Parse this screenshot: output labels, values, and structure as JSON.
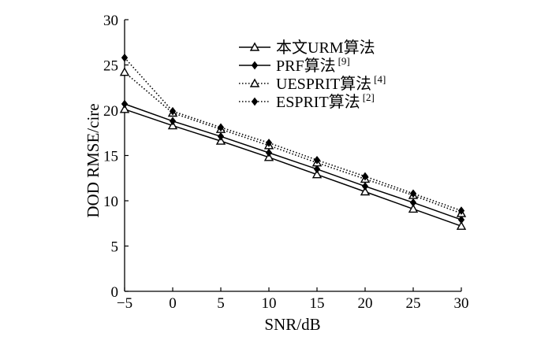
{
  "chart_data": {
    "type": "line",
    "title": "",
    "xlabel": "SNR/dB",
    "ylabel": "DOD RMSE/cire",
    "xlim": [
      -5,
      30
    ],
    "ylim": [
      0,
      30
    ],
    "x_ticks": [
      "−5",
      "0",
      "5",
      "10",
      "15",
      "20",
      "25",
      "30"
    ],
    "y_ticks": [
      "0",
      "5",
      "10",
      "15",
      "20",
      "25",
      "30"
    ],
    "grid": false,
    "legend_position": "top-right",
    "x": [
      -5,
      0,
      5,
      10,
      15,
      20,
      25,
      30
    ],
    "series": [
      {
        "name": "本文URM算法",
        "ref": "",
        "marker": "open-triangle",
        "line": "solid",
        "values": [
          20.1,
          18.3,
          16.6,
          14.8,
          12.9,
          11.0,
          9.1,
          7.2
        ]
      },
      {
        "name": "PRF算法",
        "ref": "[9]",
        "marker": "filled-diamond",
        "line": "solid",
        "values": [
          20.7,
          18.8,
          17.1,
          15.3,
          13.5,
          11.6,
          9.8,
          7.9
        ]
      },
      {
        "name": "UESPRIT算法",
        "ref": "[4]",
        "marker": "open-triangle",
        "line": "dotted",
        "values": [
          24.2,
          19.7,
          17.9,
          16.1,
          14.2,
          12.4,
          10.6,
          8.6
        ]
      },
      {
        "name": "ESPRIT算法",
        "ref": "[2]",
        "marker": "filled-diamond",
        "line": "dotted",
        "values": [
          25.8,
          19.9,
          18.1,
          16.4,
          14.5,
          12.7,
          10.8,
          8.9
        ]
      }
    ]
  }
}
